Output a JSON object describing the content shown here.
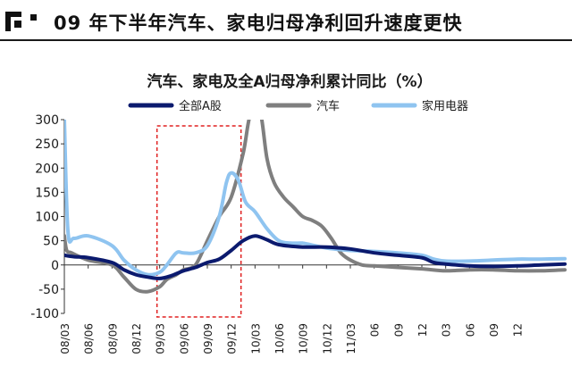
{
  "header": {
    "title": "09 年下半年汽车、家电归母净利回升速度更快"
  },
  "chart_data": {
    "type": "line",
    "title": "汽车、家电及全A归母净利累计同比（%）",
    "ylabel": "",
    "xlabel": "",
    "ylim": [
      -100,
      300
    ],
    "yticks": [
      "300",
      "250",
      "200",
      "150",
      "100",
      "50",
      "0",
      "-50",
      "-100"
    ],
    "x_tick_labels": [
      "08/03",
      "08/06",
      "08/09",
      "08/12",
      "09/03",
      "09/06",
      "09/09",
      "09/12",
      "10/03",
      "10/06",
      "10/09",
      "10/12",
      "11/03",
      "06",
      "09",
      "12",
      "03",
      "06",
      "09",
      "12"
    ],
    "legend_position": "top",
    "highlight_box": {
      "from_quarter": 4,
      "to_quarter": 7,
      "style": "dashed red"
    },
    "series": [
      {
        "name": "全部A股",
        "color": "#0b1a6e",
        "values": [
          [
            0,
            20
          ],
          [
            0.4,
            17
          ],
          [
            1,
            15
          ],
          [
            2,
            5
          ],
          [
            2.5,
            -10
          ],
          [
            3,
            -20
          ],
          [
            3.5,
            -25
          ],
          [
            4,
            -28
          ],
          [
            4.5,
            -22
          ],
          [
            5,
            -12
          ],
          [
            5.5,
            -5
          ],
          [
            6,
            5
          ],
          [
            6.5,
            12
          ],
          [
            7,
            30
          ],
          [
            7.5,
            50
          ],
          [
            8,
            60
          ],
          [
            8.5,
            52
          ],
          [
            9,
            42
          ],
          [
            10,
            37
          ],
          [
            11,
            37
          ],
          [
            12,
            33
          ],
          [
            13,
            25
          ],
          [
            14,
            20
          ],
          [
            15,
            15
          ],
          [
            15.5,
            5
          ],
          [
            16,
            2
          ],
          [
            17,
            -2
          ],
          [
            18,
            -3
          ],
          [
            19,
            -2
          ],
          [
            20,
            0
          ],
          [
            21,
            2
          ]
        ]
      },
      {
        "name": "汽车",
        "color": "#7f7f7f",
        "values": [
          [
            0,
            60
          ],
          [
            0.1,
            30
          ],
          [
            0.3,
            25
          ],
          [
            1,
            10
          ],
          [
            2,
            0
          ],
          [
            2.5,
            -25
          ],
          [
            3,
            -50
          ],
          [
            3.5,
            -55
          ],
          [
            4,
            -45
          ],
          [
            4.3,
            -30
          ],
          [
            4.7,
            -20
          ],
          [
            5,
            -10
          ],
          [
            5.5,
            0
          ],
          [
            6,
            50
          ],
          [
            6.5,
            100
          ],
          [
            7,
            140
          ],
          [
            7.5,
            230
          ],
          [
            7.8,
            310
          ],
          [
            8.2,
            320
          ],
          [
            8.5,
            220
          ],
          [
            8.8,
            170
          ],
          [
            9.2,
            140
          ],
          [
            9.6,
            120
          ],
          [
            10,
            100
          ],
          [
            10.4,
            92
          ],
          [
            10.8,
            80
          ],
          [
            11.2,
            55
          ],
          [
            11.6,
            25
          ],
          [
            12,
            10
          ],
          [
            12.5,
            0
          ],
          [
            13,
            -2
          ],
          [
            14,
            -5
          ],
          [
            15,
            -8
          ],
          [
            16,
            -12
          ],
          [
            17,
            -10
          ],
          [
            18,
            -10
          ],
          [
            19,
            -12
          ],
          [
            20,
            -12
          ],
          [
            21,
            -10
          ]
        ]
      },
      {
        "name": "家用电器",
        "color": "#8fc4f0",
        "values": [
          [
            0,
            300
          ],
          [
            0.15,
            70
          ],
          [
            0.4,
            55
          ],
          [
            1,
            60
          ],
          [
            2,
            40
          ],
          [
            2.5,
            10
          ],
          [
            3,
            -10
          ],
          [
            3.5,
            -20
          ],
          [
            4,
            -15
          ],
          [
            4.3,
            0
          ],
          [
            4.7,
            25
          ],
          [
            5,
            25
          ],
          [
            5.5,
            25
          ],
          [
            6,
            40
          ],
          [
            6.5,
            100
          ],
          [
            6.8,
            170
          ],
          [
            7,
            190
          ],
          [
            7.3,
            175
          ],
          [
            7.6,
            130
          ],
          [
            8,
            110
          ],
          [
            8.5,
            75
          ],
          [
            9,
            50
          ],
          [
            9.5,
            45
          ],
          [
            10,
            45
          ],
          [
            10.5,
            40
          ],
          [
            11,
            35
          ],
          [
            11.5,
            32
          ],
          [
            12,
            30
          ],
          [
            13,
            28
          ],
          [
            14,
            25
          ],
          [
            15,
            20
          ],
          [
            15.5,
            12
          ],
          [
            16,
            8
          ],
          [
            17,
            8
          ],
          [
            18,
            10
          ],
          [
            19,
            12
          ],
          [
            20,
            12
          ],
          [
            21,
            13
          ]
        ]
      }
    ]
  }
}
